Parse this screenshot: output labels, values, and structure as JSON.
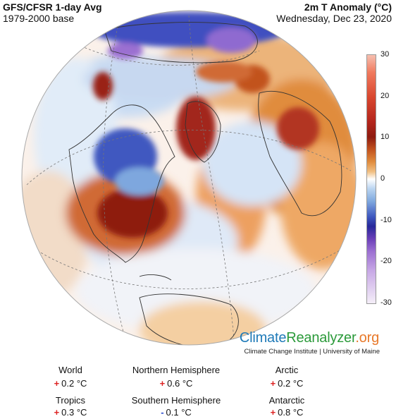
{
  "header": {
    "title": "GFS/CFSR 1-day Avg",
    "subtitle": "1979-2000 base",
    "variable": "2m T Anomaly (°C)",
    "date": "Wednesday, Dec 23, 2020"
  },
  "colorbar": {
    "ticks": [
      "30",
      "20",
      "10",
      "0",
      "-10",
      "-20",
      "-30"
    ]
  },
  "brand": {
    "part1": "Climate",
    "part2": "Reanalyzer",
    "part3": ".org",
    "subtitle": "Climate Change Institute | University of Maine"
  },
  "stats": [
    {
      "label": "World",
      "sign": "+",
      "value": "0.2 °C"
    },
    {
      "label": "Northern Hemisphere",
      "sign": "+",
      "value": "0.6 °C"
    },
    {
      "label": "Arctic",
      "sign": "+",
      "value": "0.2 °C"
    },
    {
      "label": "Tropics",
      "sign": "+",
      "value": "0.3 °C"
    },
    {
      "label": "Southern Hemisphere",
      "sign": "-",
      "value": "0.1 °C"
    },
    {
      "label": "Antarctic",
      "sign": "+",
      "value": "0.8 °C"
    }
  ],
  "colors": {
    "warm_strong": "#8e1b10",
    "warm": "#e08c3d",
    "warm_light": "#f6d2a8",
    "neutral": "#ffffff",
    "cool_light": "#c9dcf3",
    "cool": "#3f59c0",
    "cool_strong": "#27289a",
    "purple": "#9b6fd1",
    "positive_sign": "#dd2222",
    "negative_sign": "#2244cc"
  }
}
